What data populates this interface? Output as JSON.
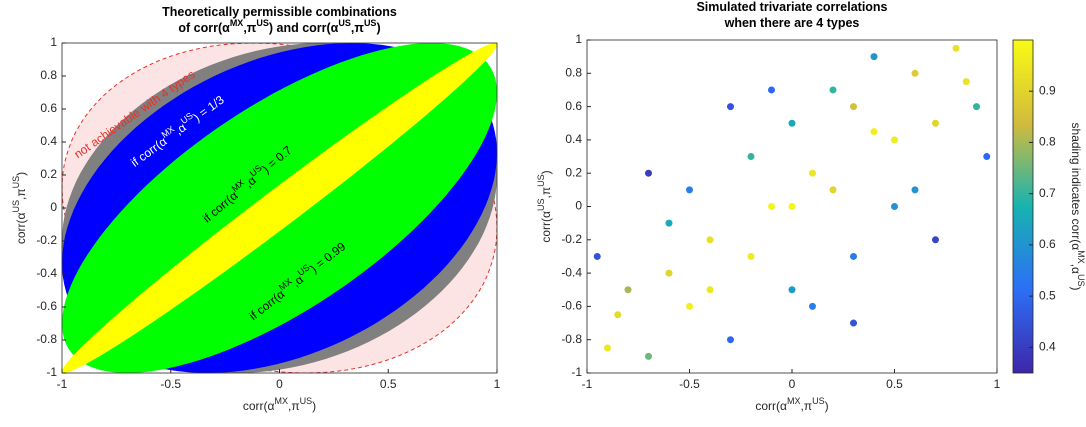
{
  "chart_data": [
    {
      "type": "ellipses",
      "title": [
        [
          "Theoretically permissible combinations"
        ],
        [
          "of corr(α",
          "MX",
          ",π",
          "US",
          ") and corr(α",
          "US",
          ",π",
          "US",
          ")"
        ]
      ],
      "xlabel": [
        "corr(α",
        "MX",
        ",π",
        "US",
        ")"
      ],
      "ylabel": [
        "corr(α",
        "US",
        ",π",
        "US",
        ")"
      ],
      "xlim": [
        -1,
        1
      ],
      "ylim": [
        -1,
        1
      ],
      "xticks": [
        -1,
        -0.5,
        0,
        0.5,
        1
      ],
      "yticks": [
        -1,
        -0.8,
        -0.6,
        -0.4,
        -0.2,
        0,
        0.2,
        0.4,
        0.6,
        0.8,
        1
      ],
      "regions": [
        {
          "r": -0.12,
          "color": "#fde4e4",
          "border": "#e8302a",
          "label": [
            "not achievable with 4 types"
          ],
          "label_color": "#e8302a"
        },
        {
          "r": 0.2,
          "color": "#808080"
        },
        {
          "r": 0.3333,
          "color": "#0000ff",
          "label": [
            "if corr(α",
            "MX",
            ",α",
            "US",
            ") = 1/3"
          ],
          "label_color": "#ffffff"
        },
        {
          "r": 0.7,
          "color": "#00ff00",
          "label": [
            "if corr(α",
            "MX",
            ",α",
            "US",
            ") = 0.7"
          ],
          "label_color": "#000000"
        },
        {
          "r": 0.99,
          "color": "#ffff00",
          "label": [
            "if corr(α",
            "MX",
            ",α",
            "US",
            ") = 0.99"
          ],
          "label_color": "#000000"
        }
      ]
    },
    {
      "type": "scatter",
      "title": [
        [
          "Simulated trivariate correlations"
        ],
        [
          "when there are 4 types"
        ]
      ],
      "xlabel": [
        "corr(α",
        "MX",
        ",π",
        "US",
        ")"
      ],
      "ylabel": [
        "corr(α",
        "US",
        ",π",
        "US",
        ")"
      ],
      "xlim": [
        -1,
        1
      ],
      "ylim": [
        -1,
        1
      ],
      "xticks": [
        -1,
        -0.5,
        0,
        0.5,
        1
      ],
      "yticks": [
        -1,
        -0.8,
        -0.6,
        -0.4,
        -0.2,
        0,
        0.2,
        0.4,
        0.6,
        0.8,
        1
      ],
      "colormap": "parula",
      "x": [
        -0.9,
        -0.8,
        -0.7,
        -0.6,
        -0.5,
        -0.5,
        -0.4,
        -0.3,
        -0.2,
        -0.2,
        -0.1,
        0,
        0,
        0.1,
        0.2,
        0.3,
        0.3,
        0.4,
        0.5,
        0.6,
        0.6,
        0.7,
        0.8,
        0.9,
        -0.95,
        -0.7,
        0.7,
        0.95,
        -0.3,
        0.3,
        -0.85,
        0.85,
        -0.6,
        0.5,
        -0.1,
        0.1,
        0,
        -0.4,
        0.4,
        0.2
      ],
      "y": [
        -0.85,
        -0.5,
        -0.9,
        -0.4,
        -0.6,
        0.1,
        -0.2,
        -0.8,
        0.3,
        -0.3,
        0,
        0.5,
        -0.5,
        0.2,
        0.1,
        0.6,
        -0.3,
        0.9,
        0.4,
        0.8,
        0.1,
        0.5,
        0.95,
        0.6,
        -0.3,
        0.2,
        -0.2,
        0.3,
        0.6,
        -0.7,
        -0.65,
        0.75,
        -0.1,
        0,
        0.7,
        -0.6,
        0,
        -0.5,
        0.45,
        0.7
      ],
      "c": [
        0.95,
        0.8,
        0.75,
        0.9,
        0.97,
        0.55,
        0.93,
        0.5,
        0.7,
        0.96,
        0.98,
        0.65,
        0.62,
        0.95,
        0.9,
        0.85,
        0.55,
        0.6,
        0.96,
        0.88,
        0.6,
        0.9,
        0.93,
        0.7,
        0.45,
        0.4,
        0.42,
        0.5,
        0.45,
        0.45,
        0.92,
        0.94,
        0.65,
        0.6,
        0.5,
        0.55,
        0.99,
        0.95,
        0.97,
        0.7
      ],
      "colorbar": {
        "lim": [
          0.35,
          1
        ],
        "ticks": [
          0.4,
          0.5,
          0.6,
          0.7,
          0.8,
          0.9
        ],
        "label": [
          "shading indicates corr(α",
          "MX",
          ",α",
          "US",
          ")"
        ]
      }
    }
  ]
}
